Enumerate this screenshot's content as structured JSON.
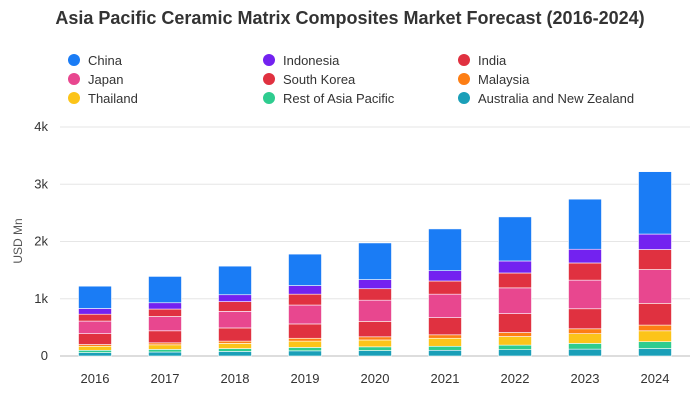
{
  "chart_data": {
    "type": "bar",
    "stacked": true,
    "title": "Asia Pacific Ceramic Matrix Composites Market Forecast (2016-2024)",
    "xlabel": "",
    "ylabel": "USD Mn",
    "ylim": [
      0,
      4000
    ],
    "yticks": [
      0,
      1000,
      2000,
      3000,
      4000
    ],
    "ytick_labels": [
      "0",
      "1k",
      "2k",
      "3k",
      "4k"
    ],
    "grid": true,
    "legend_position": "top",
    "categories": [
      "2016",
      "2017",
      "2018",
      "2019",
      "2020",
      "2021",
      "2022",
      "2023",
      "2024"
    ],
    "series": [
      {
        "name": "Australia and New Zealand",
        "color": "#1a9fb8",
        "values": [
          60,
          70,
          80,
          90,
          95,
          100,
          110,
          120,
          130
        ]
      },
      {
        "name": "Rest of Asia Pacific",
        "color": "#2ecc8f",
        "values": [
          40,
          45,
          50,
          60,
          65,
          70,
          80,
          100,
          120
        ]
      },
      {
        "name": "Thailand",
        "color": "#fcc419",
        "values": [
          70,
          80,
          90,
          110,
          120,
          140,
          150,
          170,
          190
        ]
      },
      {
        "name": "Malaysia",
        "color": "#fd7e14",
        "values": [
          30,
          35,
          40,
          50,
          55,
          60,
          70,
          85,
          100
        ]
      },
      {
        "name": "South Korea",
        "color": "#e03140",
        "values": [
          190,
          210,
          230,
          250,
          270,
          300,
          330,
          350,
          380
        ]
      },
      {
        "name": "Japan",
        "color": "#e8478f",
        "values": [
          220,
          250,
          290,
          330,
          370,
          410,
          450,
          500,
          590
        ]
      },
      {
        "name": "India",
        "color": "#e03140",
        "values": [
          120,
          130,
          170,
          190,
          200,
          230,
          260,
          300,
          350
        ]
      },
      {
        "name": "Indonesia",
        "color": "#7322f0",
        "values": [
          100,
          110,
          120,
          150,
          160,
          180,
          210,
          240,
          270
        ]
      },
      {
        "name": "China",
        "color": "#1a7cf5",
        "values": [
          390,
          460,
          500,
          550,
          640,
          730,
          770,
          875,
          1090
        ]
      }
    ]
  },
  "legend": {
    "items": [
      {
        "label": "China",
        "color": "#1a7cf5"
      },
      {
        "label": "Indonesia",
        "color": "#7322f0"
      },
      {
        "label": "India",
        "color": "#e03140"
      },
      {
        "label": "Japan",
        "color": "#e8478f"
      },
      {
        "label": "South Korea",
        "color": "#e03140"
      },
      {
        "label": "Malaysia",
        "color": "#fd7e14"
      },
      {
        "label": "Thailand",
        "color": "#fcc419"
      },
      {
        "label": "Rest of Asia Pacific",
        "color": "#2ecc8f"
      },
      {
        "label": "Australia and New Zealand",
        "color": "#1a9fb8"
      }
    ]
  }
}
